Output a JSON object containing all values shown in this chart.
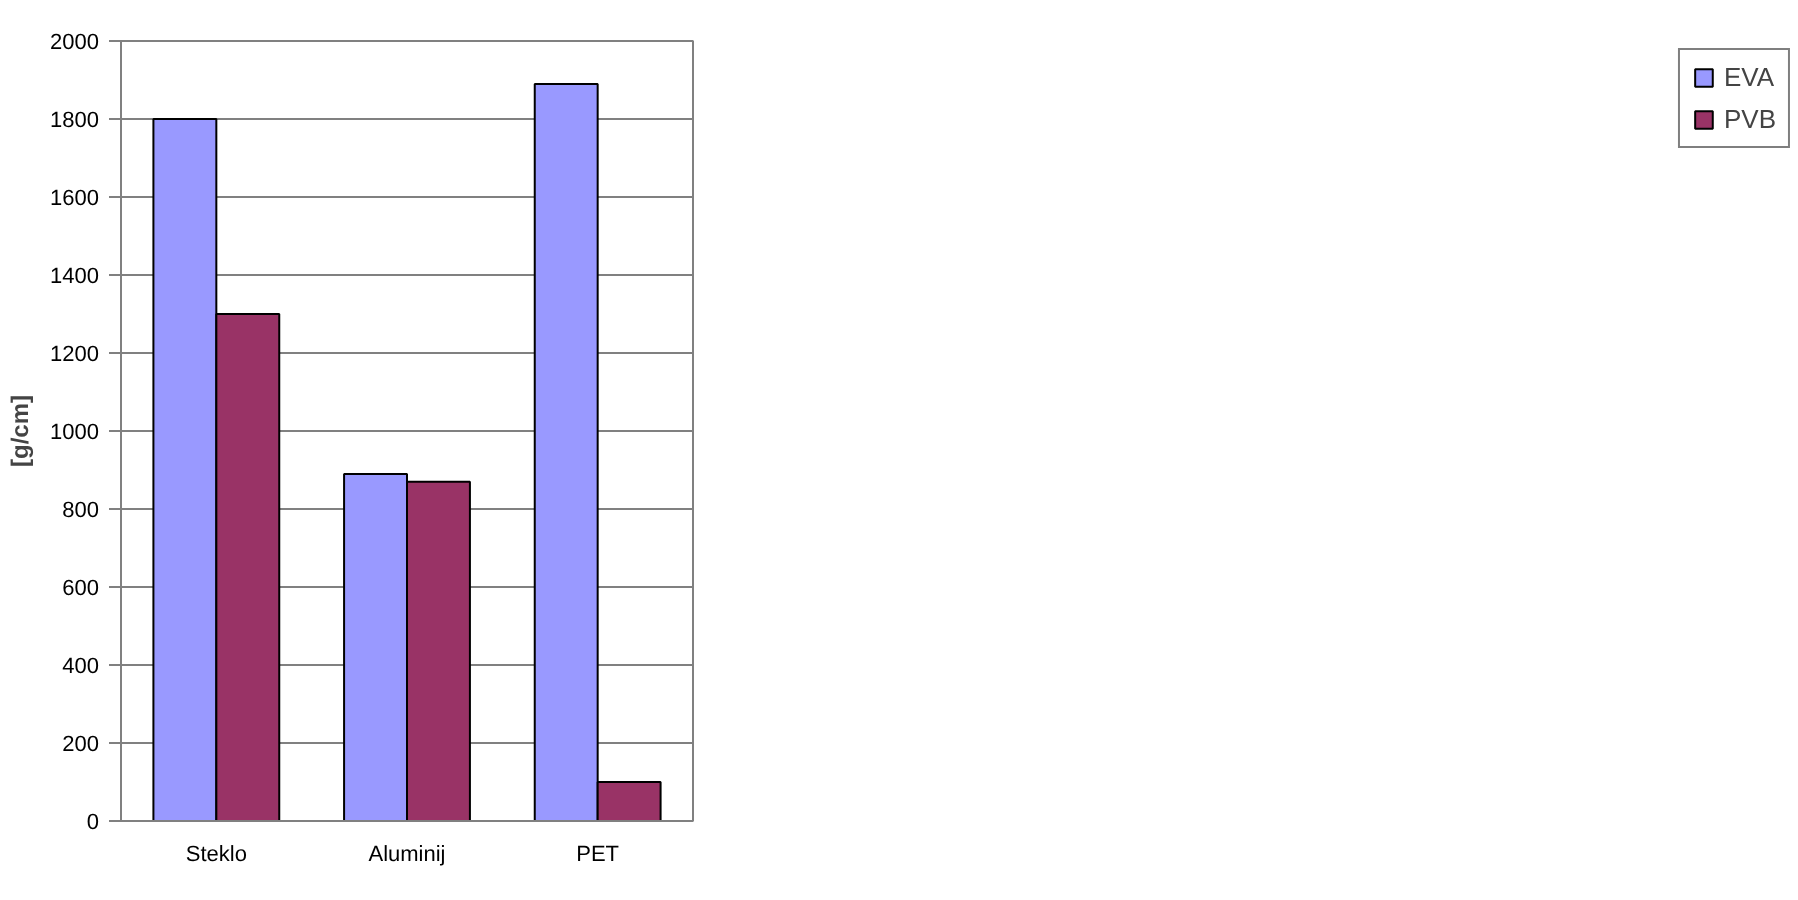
{
  "chart_data": {
    "type": "bar",
    "ylabel": "[g/cm]",
    "categories": [
      "Steklo",
      "Aluminij",
      "PET"
    ],
    "series": [
      {
        "name": "EVA",
        "color": "#9999ff",
        "values": [
          1800,
          890,
          1890
        ]
      },
      {
        "name": "PVB",
        "color": "#993366",
        "values": [
          1300,
          870,
          100
        ]
      }
    ],
    "ylim": [
      0,
      2000
    ],
    "yticks": [
      0,
      200,
      400,
      600,
      800,
      1000,
      1200,
      1400,
      1600,
      1800,
      2000
    ],
    "grid": "y",
    "legend": "right"
  }
}
